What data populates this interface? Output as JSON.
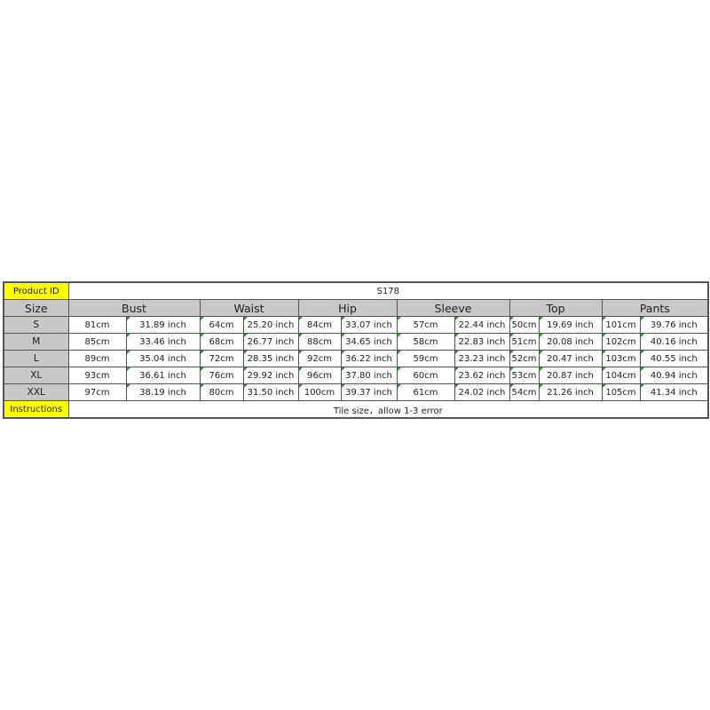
{
  "product": {
    "label": "Product ID",
    "value": "S178"
  },
  "header": {
    "size_label": "Size",
    "columns": [
      "Bust",
      "Waist",
      "Hip",
      "Sleeve",
      "Top",
      "Pants"
    ]
  },
  "rows": [
    {
      "size": "S",
      "values": [
        "81cm",
        "31.89 inch",
        "64cm",
        "25.20 inch",
        "84cm",
        "33.07 inch",
        "57cm",
        "22.44 inch",
        "50cm",
        "19.69 inch",
        "101cm",
        "39.76 inch"
      ]
    },
    {
      "size": "M",
      "values": [
        "85cm",
        "33.46 inch",
        "68cm",
        "26.77 inch",
        "88cm",
        "34.65 inch",
        "58cm",
        "22.83 inch",
        "51cm",
        "20.08 inch",
        "102cm",
        "40.16 inch"
      ]
    },
    {
      "size": "L",
      "values": [
        "89cm",
        "35.04 inch",
        "72cm",
        "28.35 inch",
        "92cm",
        "36.22 inch",
        "59cm",
        "23.23 inch",
        "52cm",
        "20.47 inch",
        "103cm",
        "40.55 inch"
      ]
    },
    {
      "size": "XL",
      "values": [
        "93cm",
        "36.61 inch",
        "76cm",
        "29.92 inch",
        "96cm",
        "37.80 inch",
        "60cm",
        "23.62 inch",
        "53cm",
        "20.87 inch",
        "104cm",
        "40.94 inch"
      ]
    },
    {
      "size": "XXL",
      "values": [
        "97cm",
        "38.19 inch",
        "80cm",
        "31.50 inch",
        "100cm",
        "39.37 inch",
        "61cm",
        "24.02 inch",
        "54cm",
        "21.26 inch",
        "105cm",
        "41.34 inch"
      ]
    }
  ],
  "instructions": {
    "label": "Instructions",
    "value": "Tile size，allow 1-3 error"
  },
  "colors": {
    "label_highlight": "#ffff00",
    "header_bg": "#c8c8c8",
    "cell_marker": "#1a9a1a"
  }
}
